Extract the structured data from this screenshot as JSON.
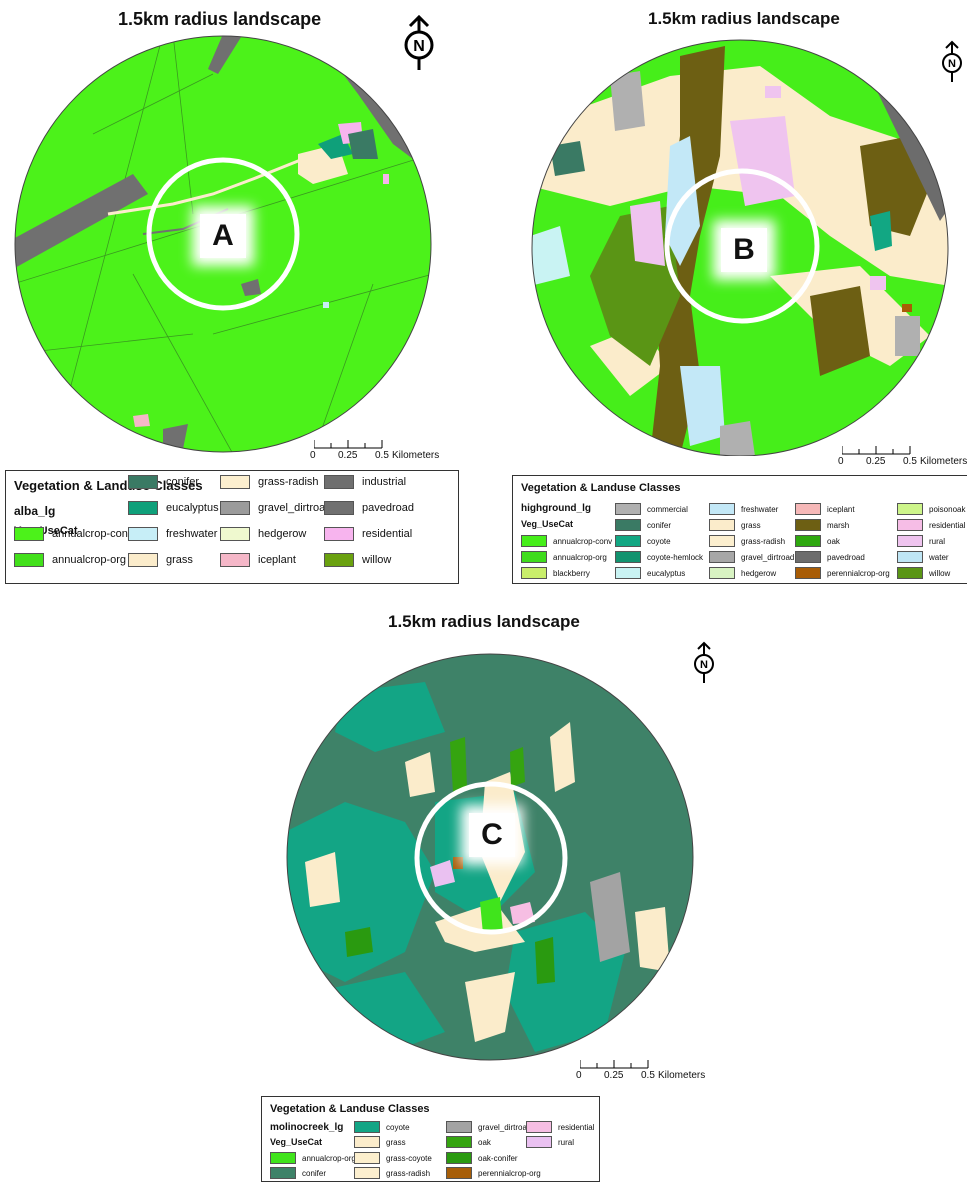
{
  "panels": [
    {
      "id": "A",
      "title": "1.5km radius landscape",
      "site_label": "A",
      "north_letter": "N",
      "scale": {
        "ticks": [
          "0",
          "0.25",
          "0.5"
        ],
        "unit": "Kilometers"
      },
      "legend": {
        "title": "Vegetation & Landuse Classes",
        "layer": "alba_lg",
        "field": "Veg_UseCat",
        "items": [
          {
            "label": "annualcrop-conv",
            "color": "#4cf21a"
          },
          {
            "label": "annualcrop-org",
            "color": "#42e01b"
          },
          {
            "label": "conifer",
            "color": "#3a7a64"
          },
          {
            "label": "eucalyptus",
            "color": "#0fa07a"
          },
          {
            "label": "freshwater",
            "color": "#c7eef7"
          },
          {
            "label": "grass",
            "color": "#fbeccb"
          },
          {
            "label": "grass-radish",
            "color": "#fcefcf"
          },
          {
            "label": "gravel_dirtroad",
            "color": "#9b9b9b"
          },
          {
            "label": "hedgerow",
            "color": "#eff9cf"
          },
          {
            "label": "iceplant",
            "color": "#f5b7c8"
          },
          {
            "label": "industrial",
            "color": "#6f6f6f"
          },
          {
            "label": "pavedroad",
            "color": "#707070"
          },
          {
            "label": "residential",
            "color": "#f7b4ee"
          },
          {
            "label": "willow",
            "color": "#6aa10f"
          }
        ]
      }
    },
    {
      "id": "B",
      "title": "1.5km radius landscape",
      "site_label": "B",
      "north_letter": "N",
      "scale": {
        "ticks": [
          "0",
          "0.25",
          "0.5"
        ],
        "unit": "Kilometers"
      },
      "legend": {
        "title": "Vegetation & Landuse Classes",
        "layer": "highground_lg",
        "field": "Veg_UseCat",
        "items": [
          {
            "label": "annualcrop-conv",
            "color": "#46ee1a"
          },
          {
            "label": "annualcrop-org",
            "color": "#3fdc1c"
          },
          {
            "label": "blackberry",
            "color": "#c9ee6b"
          },
          {
            "label": "commercial",
            "color": "#b0b0b0"
          },
          {
            "label": "conifer",
            "color": "#3a7a64"
          },
          {
            "label": "coyote",
            "color": "#12a783"
          },
          {
            "label": "coyote-hemlock",
            "color": "#12936f"
          },
          {
            "label": "eucalyptus",
            "color": "#c9f3f3"
          },
          {
            "label": "freshwater",
            "color": "#c3e8f7"
          },
          {
            "label": "grass",
            "color": "#fbeccb"
          },
          {
            "label": "grass-radish",
            "color": "#fcefcf"
          },
          {
            "label": "gravel_dirtroad",
            "color": "#a7a7a7"
          },
          {
            "label": "hedgerow",
            "color": "#d8f3c2"
          },
          {
            "label": "iceplant",
            "color": "#f6b8b8"
          },
          {
            "label": "marsh",
            "color": "#6d5f13"
          },
          {
            "label": "oak",
            "color": "#2ea80f"
          },
          {
            "label": "pavedroad",
            "color": "#6c6c6c"
          },
          {
            "label": "perennialcrop-org",
            "color": "#a85c05"
          },
          {
            "label": "poisonoak",
            "color": "#cdf58a"
          },
          {
            "label": "residential",
            "color": "#f6bde6"
          },
          {
            "label": "rural",
            "color": "#efc4ef"
          },
          {
            "label": "water",
            "color": "#bfe6f5"
          },
          {
            "label": "willow",
            "color": "#5a9515"
          }
        ]
      }
    },
    {
      "id": "C",
      "title": "1.5km radius landscape",
      "site_label": "C",
      "north_letter": "N",
      "scale": {
        "ticks": [
          "0",
          "0.25",
          "0.5"
        ],
        "unit": "Kilometers"
      },
      "legend": {
        "title": "Vegetation & Landuse Classes",
        "layer": "molinocreek_lg",
        "field": "Veg_UseCat",
        "items": [
          {
            "label": "annualcrop-org",
            "color": "#40e41c"
          },
          {
            "label": "conifer",
            "color": "#3e8268"
          },
          {
            "label": "coyote",
            "color": "#13a585"
          },
          {
            "label": "grass",
            "color": "#fbeccb"
          },
          {
            "label": "grass-coyote",
            "color": "#fcefcd"
          },
          {
            "label": "grass-radish",
            "color": "#fcefcf"
          },
          {
            "label": "gravel_dirtroad",
            "color": "#a3a3a3"
          },
          {
            "label": "oak",
            "color": "#35a410"
          },
          {
            "label": "oak-conifer",
            "color": "#2a9a10"
          },
          {
            "label": "perennialcrop-org",
            "color": "#a75e08"
          },
          {
            "label": "residential",
            "color": "#f6bee3"
          },
          {
            "label": "rural",
            "color": "#eac1f1"
          }
        ]
      }
    }
  ]
}
